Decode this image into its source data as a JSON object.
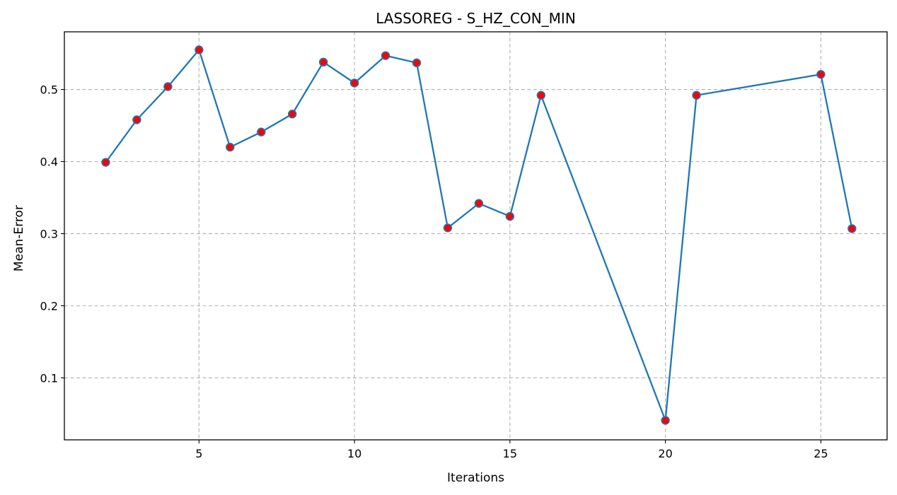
{
  "chart_data": {
    "type": "line",
    "title": "LASSOREG - S_HZ_CON_MIN",
    "xlabel": "Iterations",
    "ylabel": "Mean-Error",
    "xlim": [
      0.67,
      27.13
    ],
    "ylim": [
      0.014,
      0.58
    ],
    "xticks": [
      "5",
      "10",
      "15",
      "20",
      "25"
    ],
    "yticks": [
      "0.1",
      "0.2",
      "0.3",
      "0.4",
      "0.5"
    ],
    "grid": true,
    "colors": {
      "line": "#1f77b4",
      "marker_fill": "#ff0000",
      "marker_edge": "#1f77b4"
    },
    "series": [
      {
        "x": [
          2,
          3,
          4,
          5,
          6,
          7,
          8,
          9,
          10,
          11,
          12,
          13,
          14,
          15,
          16,
          20,
          21,
          25,
          26
        ],
        "y": [
          0.399,
          0.458,
          0.504,
          0.555,
          0.42,
          0.441,
          0.466,
          0.538,
          0.509,
          0.547,
          0.537,
          0.308,
          0.342,
          0.324,
          0.492,
          0.041,
          0.492,
          0.521,
          0.307
        ]
      }
    ]
  }
}
